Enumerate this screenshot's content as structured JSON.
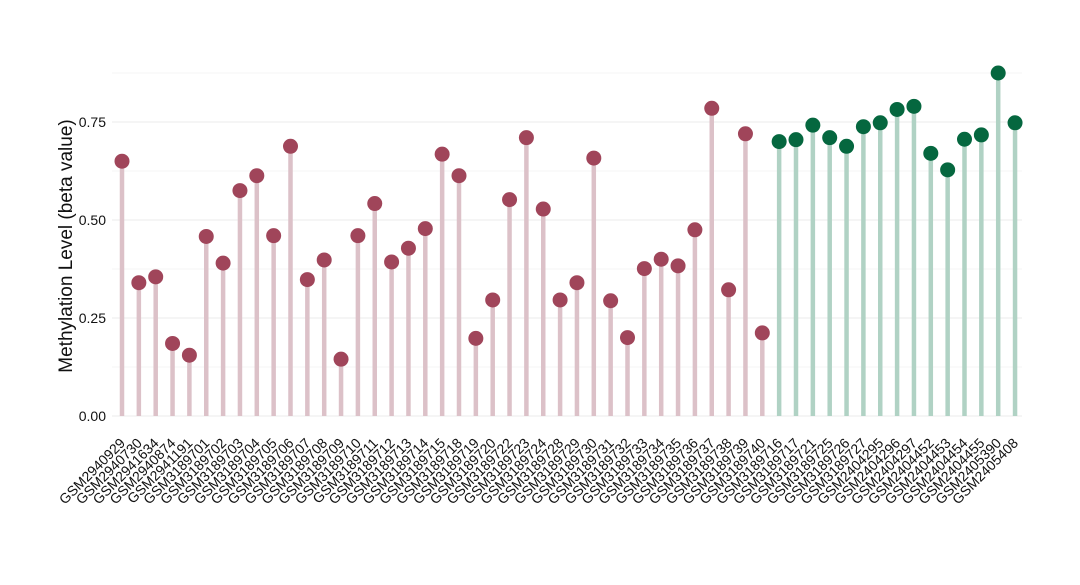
{
  "chart_data": {
    "type": "lollipop",
    "title": "",
    "xlabel": "",
    "ylabel": "Methylation Level (beta value)",
    "ylim": [
      0,
      0.92
    ],
    "yticks": [
      0.0,
      0.25,
      0.5,
      0.75
    ],
    "ytick_labels": [
      "0.00",
      "0.25",
      "0.50",
      "0.75"
    ],
    "grid": true,
    "legend": "none",
    "colors": {
      "group1_point": "#a0455a",
      "group1_stem": "#dcc1c8",
      "group2_point": "#05673f",
      "group2_stem": "#b0d2c4",
      "grid": "#ebebeb",
      "text": "#111111"
    },
    "samples": [
      {
        "label": "GSM2940929",
        "value": 0.65,
        "group": 1
      },
      {
        "label": "GSM2940730",
        "value": 0.34,
        "group": 1
      },
      {
        "label": "GSM2941634",
        "value": 0.355,
        "group": 1
      },
      {
        "label": "GSM2940874",
        "value": 0.185,
        "group": 1
      },
      {
        "label": "GSM2941191",
        "value": 0.155,
        "group": 1
      },
      {
        "label": "GSM3189701",
        "value": 0.458,
        "group": 1
      },
      {
        "label": "GSM3189702",
        "value": 0.39,
        "group": 1
      },
      {
        "label": "GSM3189703",
        "value": 0.575,
        "group": 1
      },
      {
        "label": "GSM3189704",
        "value": 0.613,
        "group": 1
      },
      {
        "label": "GSM3189705",
        "value": 0.46,
        "group": 1
      },
      {
        "label": "GSM3189706",
        "value": 0.688,
        "group": 1
      },
      {
        "label": "GSM3189707",
        "value": 0.348,
        "group": 1
      },
      {
        "label": "GSM3189708",
        "value": 0.398,
        "group": 1
      },
      {
        "label": "GSM3189709",
        "value": 0.145,
        "group": 1
      },
      {
        "label": "GSM3189710",
        "value": 0.46,
        "group": 1
      },
      {
        "label": "GSM3189711",
        "value": 0.542,
        "group": 1
      },
      {
        "label": "GSM3189712",
        "value": 0.393,
        "group": 1
      },
      {
        "label": "GSM3189713",
        "value": 0.428,
        "group": 1
      },
      {
        "label": "GSM3189714",
        "value": 0.478,
        "group": 1
      },
      {
        "label": "GSM3189715",
        "value": 0.668,
        "group": 1
      },
      {
        "label": "GSM3189718",
        "value": 0.613,
        "group": 1
      },
      {
        "label": "GSM3189719",
        "value": 0.198,
        "group": 1
      },
      {
        "label": "GSM3189720",
        "value": 0.296,
        "group": 1
      },
      {
        "label": "GSM3189722",
        "value": 0.552,
        "group": 1
      },
      {
        "label": "GSM3189723",
        "value": 0.71,
        "group": 1
      },
      {
        "label": "GSM3189724",
        "value": 0.528,
        "group": 1
      },
      {
        "label": "GSM3189728",
        "value": 0.296,
        "group": 1
      },
      {
        "label": "GSM3189729",
        "value": 0.34,
        "group": 1
      },
      {
        "label": "GSM3189730",
        "value": 0.658,
        "group": 1
      },
      {
        "label": "GSM3189731",
        "value": 0.294,
        "group": 1
      },
      {
        "label": "GSM3189732",
        "value": 0.2,
        "group": 1
      },
      {
        "label": "GSM3189733",
        "value": 0.376,
        "group": 1
      },
      {
        "label": "GSM3189734",
        "value": 0.4,
        "group": 1
      },
      {
        "label": "GSM3189735",
        "value": 0.383,
        "group": 1
      },
      {
        "label": "GSM3189736",
        "value": 0.475,
        "group": 1
      },
      {
        "label": "GSM3189737",
        "value": 0.785,
        "group": 1
      },
      {
        "label": "GSM3189738",
        "value": 0.322,
        "group": 1
      },
      {
        "label": "GSM3189739",
        "value": 0.72,
        "group": 1
      },
      {
        "label": "GSM3189740",
        "value": 0.212,
        "group": 1
      },
      {
        "label": "GSM3189716",
        "value": 0.7,
        "group": 2
      },
      {
        "label": "GSM3189717",
        "value": 0.705,
        "group": 2
      },
      {
        "label": "GSM3189721",
        "value": 0.742,
        "group": 2
      },
      {
        "label": "GSM3189725",
        "value": 0.71,
        "group": 2
      },
      {
        "label": "GSM3189726",
        "value": 0.688,
        "group": 2
      },
      {
        "label": "GSM3189727",
        "value": 0.738,
        "group": 2
      },
      {
        "label": "GSM2404295",
        "value": 0.748,
        "group": 2
      },
      {
        "label": "GSM2404296",
        "value": 0.782,
        "group": 2
      },
      {
        "label": "GSM2404297",
        "value": 0.79,
        "group": 2
      },
      {
        "label": "GSM2404452",
        "value": 0.67,
        "group": 2
      },
      {
        "label": "GSM2404453",
        "value": 0.628,
        "group": 2
      },
      {
        "label": "GSM2404454",
        "value": 0.706,
        "group": 2
      },
      {
        "label": "GSM2404455",
        "value": 0.717,
        "group": 2
      },
      {
        "label": "GSM2405390",
        "value": 0.875,
        "group": 2
      },
      {
        "label": "GSM2405408",
        "value": 0.748,
        "group": 2
      }
    ]
  }
}
